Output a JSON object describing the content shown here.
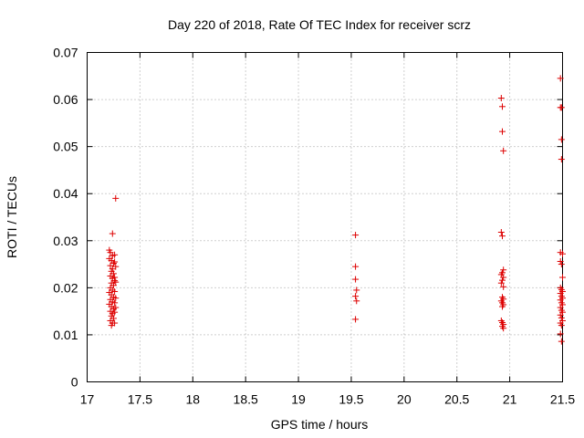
{
  "chart_data": {
    "type": "scatter",
    "title": "Day 220 of 2018, Rate Of TEC Index for receiver scrz",
    "xlabel": "GPS time / hours",
    "ylabel": "ROTI / TECUs",
    "xlim": [
      17,
      21.5
    ],
    "ylim": [
      0,
      0.07
    ],
    "xticks": [
      17,
      17.5,
      18,
      18.5,
      19,
      19.5,
      20,
      20.5,
      21,
      21.5
    ],
    "xtick_labels": [
      "17",
      "17.5",
      "18",
      "18.5",
      "19",
      "19.5",
      "20",
      "20.5",
      "21",
      "21.5"
    ],
    "yticks": [
      0,
      0.01,
      0.02,
      0.03,
      0.04,
      0.05,
      0.06,
      0.07
    ],
    "ytick_labels": [
      "0",
      "0.01",
      "0.02",
      "0.03",
      "0.04",
      "0.05",
      "0.06",
      "0.07"
    ],
    "grid": true,
    "marker": "+",
    "marker_color": "#dd0000",
    "series": [
      {
        "name": "ROTI",
        "points": [
          [
            17.21,
            0.028
          ],
          [
            17.22,
            0.0275
          ],
          [
            17.24,
            0.0268
          ],
          [
            17.21,
            0.0262
          ],
          [
            17.23,
            0.0258
          ],
          [
            17.25,
            0.0252
          ],
          [
            17.22,
            0.0247
          ],
          [
            17.24,
            0.024
          ],
          [
            17.23,
            0.0235
          ],
          [
            17.25,
            0.023
          ],
          [
            17.22,
            0.0225
          ],
          [
            17.24,
            0.022
          ],
          [
            17.26,
            0.0215
          ],
          [
            17.23,
            0.021
          ],
          [
            17.25,
            0.0205
          ],
          [
            17.22,
            0.02
          ],
          [
            17.24,
            0.0195
          ],
          [
            17.21,
            0.019
          ],
          [
            17.23,
            0.0185
          ],
          [
            17.25,
            0.018
          ],
          [
            17.22,
            0.0175
          ],
          [
            17.24,
            0.017
          ],
          [
            17.21,
            0.0165
          ],
          [
            17.23,
            0.016
          ],
          [
            17.25,
            0.0155
          ],
          [
            17.22,
            0.015
          ],
          [
            17.24,
            0.0145
          ],
          [
            17.23,
            0.014
          ],
          [
            17.25,
            0.0135
          ],
          [
            17.22,
            0.013
          ],
          [
            17.24,
            0.0125
          ],
          [
            17.23,
            0.012
          ],
          [
            17.24,
            0.0315
          ],
          [
            17.27,
            0.039
          ],
          [
            17.26,
            0.027
          ],
          [
            17.26,
            0.0255
          ],
          [
            17.27,
            0.0245
          ],
          [
            17.26,
            0.0222
          ],
          [
            17.27,
            0.0212
          ],
          [
            17.26,
            0.0192
          ],
          [
            17.27,
            0.0178
          ],
          [
            17.26,
            0.0168
          ],
          [
            17.27,
            0.0158
          ],
          [
            17.26,
            0.0148
          ],
          [
            17.26,
            0.0125
          ],
          [
            19.54,
            0.0312
          ],
          [
            19.54,
            0.0245
          ],
          [
            19.54,
            0.0218
          ],
          [
            19.55,
            0.0195
          ],
          [
            19.54,
            0.0182
          ],
          [
            19.55,
            0.0172
          ],
          [
            19.54,
            0.0133
          ],
          [
            20.92,
            0.0603
          ],
          [
            20.93,
            0.0585
          ],
          [
            20.93,
            0.0532
          ],
          [
            20.94,
            0.0491
          ],
          [
            20.92,
            0.0318
          ],
          [
            20.93,
            0.031
          ],
          [
            20.94,
            0.0238
          ],
          [
            20.93,
            0.0232
          ],
          [
            20.92,
            0.0228
          ],
          [
            20.94,
            0.0222
          ],
          [
            20.93,
            0.0216
          ],
          [
            20.92,
            0.021
          ],
          [
            20.94,
            0.0202
          ],
          [
            20.93,
            0.018
          ],
          [
            20.94,
            0.0176
          ],
          [
            20.92,
            0.0172
          ],
          [
            20.93,
            0.0168
          ],
          [
            20.94,
            0.0164
          ],
          [
            20.93,
            0.016
          ],
          [
            20.92,
            0.013
          ],
          [
            20.93,
            0.0126
          ],
          [
            20.94,
            0.0122
          ],
          [
            20.93,
            0.0118
          ],
          [
            20.94,
            0.0114
          ],
          [
            21.48,
            0.0645
          ],
          [
            21.48,
            0.0583
          ],
          [
            21.49,
            0.0583
          ],
          [
            21.49,
            0.0515
          ],
          [
            21.49,
            0.0473
          ],
          [
            21.48,
            0.0275
          ],
          [
            21.5,
            0.0272
          ],
          [
            21.48,
            0.0256
          ],
          [
            21.49,
            0.025
          ],
          [
            21.5,
            0.0222
          ],
          [
            21.48,
            0.02
          ],
          [
            21.49,
            0.0196
          ],
          [
            21.5,
            0.0192
          ],
          [
            21.48,
            0.0188
          ],
          [
            21.49,
            0.0182
          ],
          [
            21.5,
            0.0178
          ],
          [
            21.48,
            0.0174
          ],
          [
            21.49,
            0.0168
          ],
          [
            21.5,
            0.0164
          ],
          [
            21.48,
            0.0158
          ],
          [
            21.49,
            0.0152
          ],
          [
            21.5,
            0.0148
          ],
          [
            21.48,
            0.0142
          ],
          [
            21.49,
            0.0136
          ],
          [
            21.5,
            0.013
          ],
          [
            21.48,
            0.0125
          ],
          [
            21.49,
            0.012
          ],
          [
            21.48,
            0.0102
          ],
          [
            21.49,
            0.0086
          ]
        ]
      }
    ]
  }
}
